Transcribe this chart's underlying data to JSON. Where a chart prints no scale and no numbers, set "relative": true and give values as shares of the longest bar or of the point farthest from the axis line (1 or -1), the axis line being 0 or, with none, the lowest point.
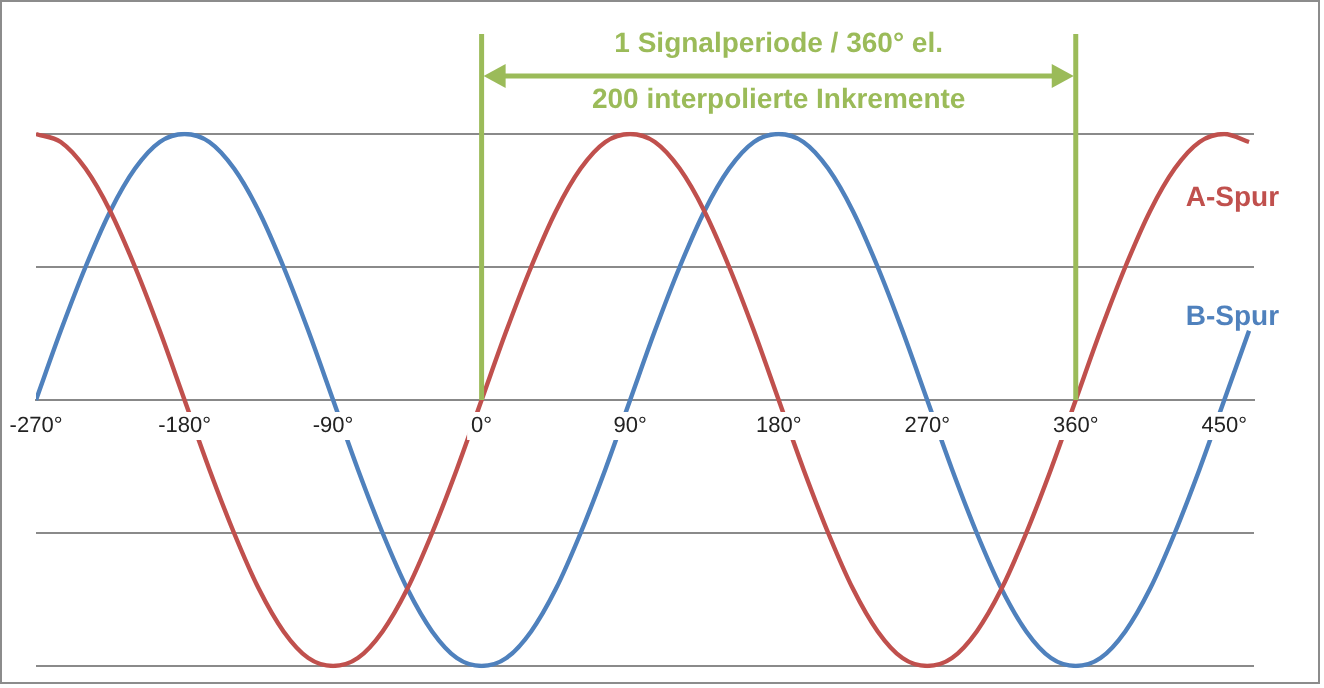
{
  "chart_data": {
    "type": "line",
    "relative": true,
    "x": [
      -270,
      -255,
      -240,
      -225,
      -210,
      -195,
      -180,
      -165,
      -150,
      -135,
      -120,
      -105,
      -90,
      -75,
      -60,
      -45,
      -30,
      -15,
      0,
      15,
      30,
      45,
      60,
      75,
      90,
      105,
      120,
      135,
      150,
      165,
      180,
      195,
      210,
      225,
      240,
      255,
      270,
      285,
      300,
      315,
      330,
      345,
      360,
      375,
      390,
      405,
      420,
      435,
      450,
      465
    ],
    "series": [
      {
        "name": "A-Spur",
        "color": "#c0504d",
        "values": [
          1,
          0.97,
          0.87,
          0.71,
          0.5,
          0.26,
          0,
          -0.26,
          -0.5,
          -0.71,
          -0.87,
          -0.97,
          -1,
          -0.97,
          -0.87,
          -0.71,
          -0.5,
          -0.26,
          0,
          0.26,
          0.5,
          0.71,
          0.87,
          0.97,
          1,
          0.97,
          0.87,
          0.71,
          0.5,
          0.26,
          0,
          -0.26,
          -0.5,
          -0.71,
          -0.87,
          -0.97,
          -1,
          -0.97,
          -0.87,
          -0.71,
          -0.5,
          -0.26,
          0,
          0.26,
          0.5,
          0.71,
          0.87,
          0.97,
          1,
          0.97
        ]
      },
      {
        "name": "B-Spur",
        "color": "#4f81bd",
        "values": [
          0,
          0.26,
          0.5,
          0.71,
          0.87,
          0.97,
          1,
          0.97,
          0.87,
          0.71,
          0.5,
          0.26,
          0,
          -0.26,
          -0.5,
          -0.71,
          -0.87,
          -0.97,
          -1,
          -0.97,
          -0.87,
          -0.71,
          -0.5,
          -0.26,
          0,
          0.26,
          0.5,
          0.71,
          0.87,
          0.97,
          1,
          0.97,
          0.87,
          0.71,
          0.5,
          0.26,
          0,
          -0.26,
          -0.5,
          -0.71,
          -0.87,
          -0.97,
          -1,
          -0.97,
          -0.87,
          -0.71,
          -0.5,
          -0.26,
          0,
          0.26
        ]
      }
    ],
    "xlim": [
      -270,
      468
    ],
    "xticks": [
      {
        "value": -270,
        "label": "-270°"
      },
      {
        "value": -180,
        "label": "-180°"
      },
      {
        "value": -90,
        "label": "-90°"
      },
      {
        "value": 0,
        "label": "0°"
      },
      {
        "value": 90,
        "label": "90°"
      },
      {
        "value": 180,
        "label": "180°"
      },
      {
        "value": 270,
        "label": "270°"
      },
      {
        "value": 360,
        "label": "360°"
      },
      {
        "value": 450,
        "label": "450°"
      }
    ],
    "ref_lines": [
      {
        "axis": "x",
        "value": 0,
        "color": "#9bbb59"
      },
      {
        "axis": "x",
        "value": 360,
        "color": "#9bbb59"
      },
      {
        "axis": "y",
        "value": 1,
        "color": "#8a8a8a"
      },
      {
        "axis": "y",
        "value": 0.5,
        "color": "#8a8a8a"
      },
      {
        "axis": "y",
        "value": -0.5,
        "color": "#8a8a8a"
      },
      {
        "axis": "y",
        "value": -1,
        "color": "#8a8a8a"
      }
    ],
    "annotations": [
      "1 Signalperiode / 360° el.",
      "200 interpolierte Inkremente"
    ],
    "legend": false,
    "marker": "none",
    "line_style": "solid"
  }
}
